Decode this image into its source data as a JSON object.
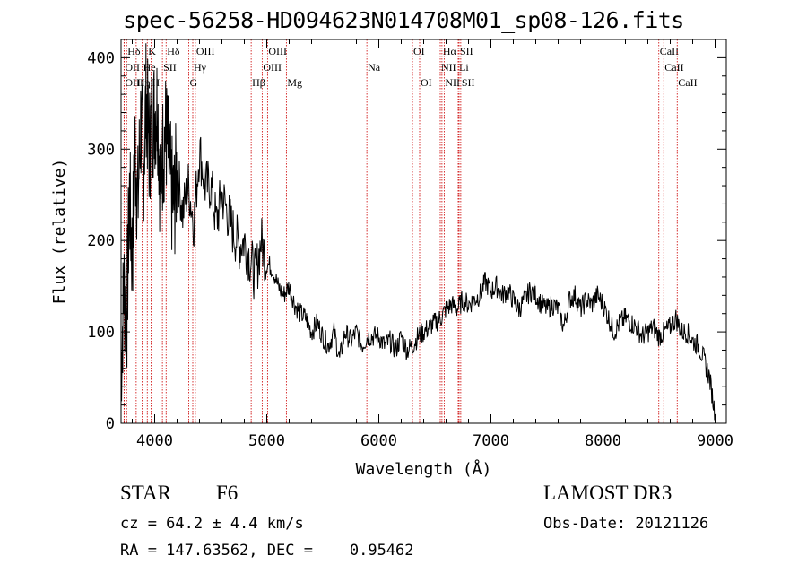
{
  "chart_data": {
    "type": "line",
    "title": "spec-56258-HD094623N014708M01_sp08-126.fits",
    "xlabel": "Wavelength (Å)",
    "ylabel": "Flux (relative)",
    "xlim": [
      3700,
      9100
    ],
    "ylim": [
      0,
      420
    ],
    "xticks": [
      4000,
      5000,
      6000,
      7000,
      8000,
      9000
    ],
    "yticks": [
      0,
      100,
      200,
      300,
      400
    ],
    "line_color": "#000000",
    "marker_color": "#cc0000",
    "series": [
      {
        "x": [
          3700,
          3725,
          3750,
          3775,
          3800,
          3825,
          3850,
          3875,
          3900,
          3925,
          3950,
          3975,
          4000,
          4025,
          4050,
          4075,
          4100,
          4125,
          4150,
          4175,
          4200,
          4250,
          4300,
          4350,
          4400,
          4450,
          4500,
          4550,
          4600,
          4650,
          4700,
          4750,
          4800,
          4850,
          4900,
          4950,
          5000,
          5050,
          5100,
          5150,
          5200,
          5250,
          5300,
          5350,
          5400,
          5450,
          5500,
          5550,
          5600,
          5650,
          5700,
          5750,
          5800,
          5850,
          5900,
          5950,
          6000,
          6050,
          6100,
          6150,
          6200,
          6250,
          6300,
          6350,
          6400,
          6450,
          6500,
          6550,
          6600,
          6650,
          6700,
          6750,
          6800,
          6850,
          6900,
          6950,
          7000,
          7050,
          7100,
          7150,
          7200,
          7250,
          7300,
          7350,
          7400,
          7450,
          7500,
          7550,
          7600,
          7650,
          7700,
          7750,
          7800,
          7850,
          7900,
          7950,
          8000,
          8050,
          8100,
          8150,
          8200,
          8250,
          8300,
          8350,
          8400,
          8450,
          8500,
          8550,
          8600,
          8650,
          8700,
          8750,
          8800,
          8850,
          8900,
          8950,
          9000
        ],
        "y": [
          60,
          150,
          110,
          250,
          180,
          300,
          240,
          330,
          280,
          360,
          300,
          330,
          340,
          350,
          260,
          300,
          320,
          290,
          250,
          240,
          280,
          230,
          260,
          220,
          300,
          260,
          260,
          220,
          250,
          230,
          210,
          195,
          200,
          180,
          160,
          200,
          175,
          170,
          150,
          140,
          150,
          130,
          120,
          115,
          100,
          110,
          95,
          85,
          100,
          70,
          100,
          90,
          100,
          85,
          95,
          95,
          95,
          85,
          90,
          80,
          95,
          80,
          85,
          95,
          100,
          105,
          110,
          115,
          125,
          130,
          125,
          135,
          130,
          135,
          140,
          155,
          145,
          150,
          140,
          145,
          135,
          125,
          135,
          145,
          140,
          130,
          125,
          130,
          125,
          105,
          135,
          140,
          125,
          135,
          130,
          140,
          130,
          115,
          100,
          110,
          115,
          110,
          105,
          95,
          100,
          105,
          95,
          100,
          105,
          115,
          100,
          100,
          90,
          85,
          70,
          50,
          10
        ]
      }
    ],
    "line_markers": [
      {
        "label": "Hδ",
        "x": 3750,
        "row": 1
      },
      {
        "label": "K",
        "x": 3934,
        "row": 1
      },
      {
        "label": "Hδ",
        "x": 4102,
        "row": 1
      },
      {
        "label": "OIII",
        "x": 4363,
        "row": 1
      },
      {
        "label": "OIII",
        "x": 5007,
        "row": 1
      },
      {
        "label": "OI",
        "x": 6300,
        "row": 1
      },
      {
        "label": "Hα",
        "x": 6563,
        "row": 1
      },
      {
        "label": "SII",
        "x": 6716,
        "row": 1
      },
      {
        "label": "CaII",
        "x": 8498,
        "row": 1
      },
      {
        "label": "OII",
        "x": 3727,
        "row": 2
      },
      {
        "label": "He",
        "x": 3889,
        "row": 2
      },
      {
        "label": "SII",
        "x": 4069,
        "row": 2
      },
      {
        "label": "Hγ",
        "x": 4340,
        "row": 2
      },
      {
        "label": "OIII",
        "x": 4959,
        "row": 2
      },
      {
        "label": "Na",
        "x": 5893,
        "row": 2
      },
      {
        "label": "NII",
        "x": 6548,
        "row": 2
      },
      {
        "label": "Li",
        "x": 6708,
        "row": 2
      },
      {
        "label": "CaII",
        "x": 8542,
        "row": 2
      },
      {
        "label": "OIII",
        "x": 3727,
        "row": 3
      },
      {
        "label": "Hη",
        "x": 3835,
        "row": 3
      },
      {
        "label": "H",
        "x": 3968,
        "row": 3
      },
      {
        "label": "G",
        "x": 4304,
        "row": 3
      },
      {
        "label": "Hβ",
        "x": 4861,
        "row": 3
      },
      {
        "label": "Mg",
        "x": 5175,
        "row": 3
      },
      {
        "label": "OI",
        "x": 6364,
        "row": 3
      },
      {
        "label": "NII",
        "x": 6583,
        "row": 3
      },
      {
        "label": "SII",
        "x": 6731,
        "row": 3
      },
      {
        "label": "CaII",
        "x": 8662,
        "row": 3
      }
    ]
  },
  "info": {
    "class_label": "STAR",
    "subclass": "F6",
    "redshift": "cz = 64.2 ± 4.4 km/s",
    "coords": "RA = 147.63562, DEC =    0.95462",
    "survey": "LAMOST DR3",
    "obs_date": "Obs-Date: 20121126"
  }
}
